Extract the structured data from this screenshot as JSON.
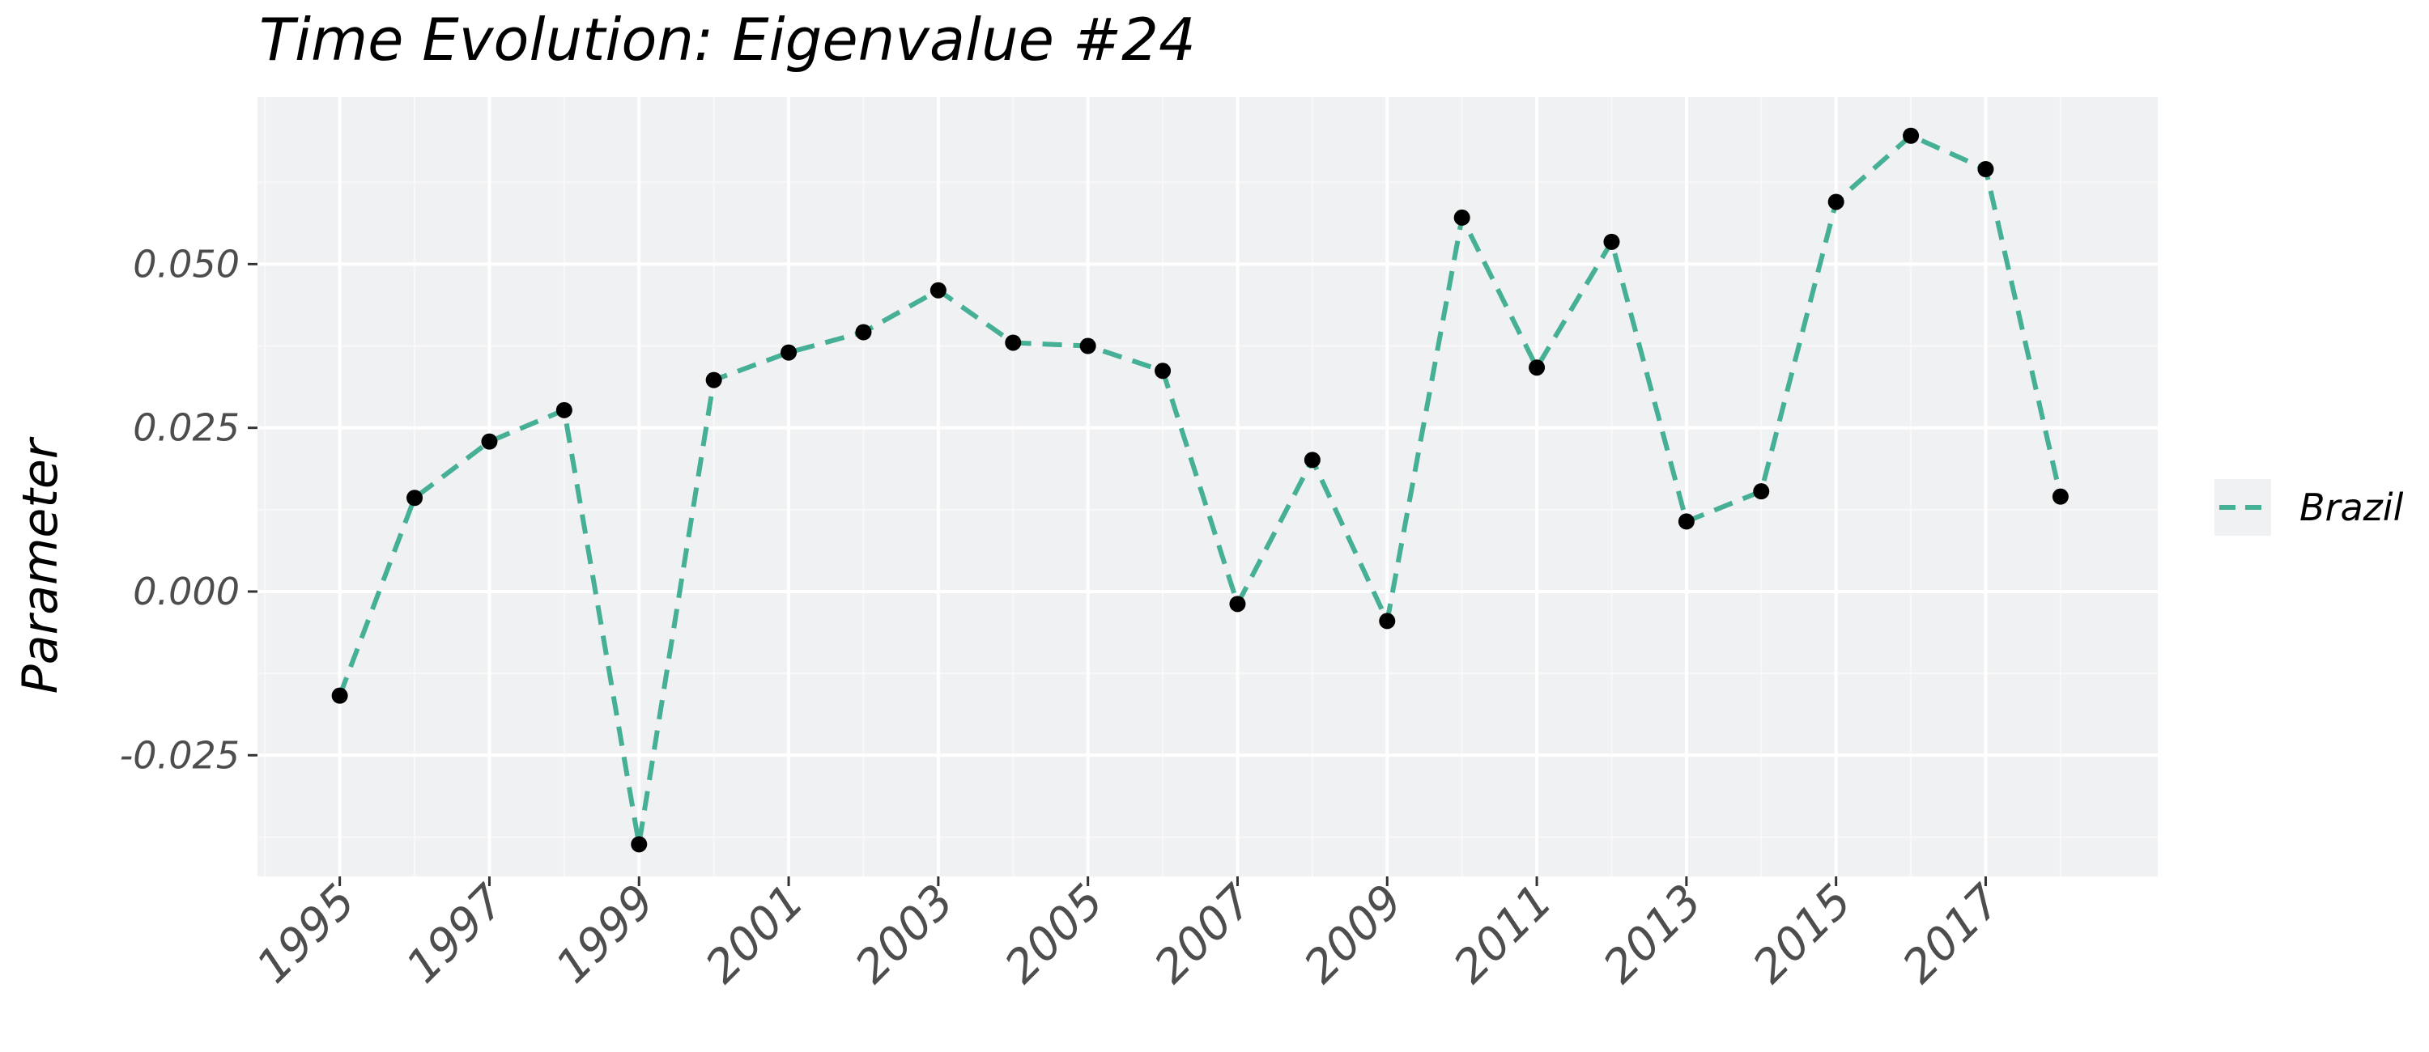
{
  "chart_data": {
    "type": "line",
    "title": "Time Evolution: Eigenvalue #24",
    "xlabel": "",
    "ylabel": "Parameter",
    "xlim": [
      1993.9,
      2019.3
    ],
    "ylim": [
      -0.0435,
      0.0755
    ],
    "x_ticks": [
      1995,
      1997,
      1999,
      2001,
      2003,
      2005,
      2007,
      2009,
      2011,
      2013,
      2015,
      2017
    ],
    "x_tick_labels": [
      "1995",
      "1997",
      "1999",
      "2001",
      "2003",
      "2005",
      "2007",
      "2009",
      "2011",
      "2013",
      "2015",
      "2017"
    ],
    "y_ticks": [
      -0.025,
      0.0,
      0.025,
      0.05
    ],
    "y_tick_labels": [
      "-0.025",
      "0.000",
      "0.025",
      "0.050"
    ],
    "grid": true,
    "legend_position": "right",
    "series": [
      {
        "name": "Brazil",
        "color": "#45b095",
        "line_style": "dashed",
        "marker_color": "#000000",
        "x": [
          1995,
          1996,
          1997,
          1998,
          1999,
          2000,
          2001,
          2002,
          2003,
          2004,
          2005,
          2006,
          2007,
          2008,
          2009,
          2010,
          2011,
          2012,
          2013,
          2014,
          2015,
          2016,
          2017,
          2018
        ],
        "values": [
          -0.0159,
          0.0143,
          0.0229,
          0.0277,
          -0.0386,
          0.0323,
          0.0365,
          0.0396,
          0.046,
          0.038,
          0.0375,
          0.0337,
          -0.0019,
          0.0201,
          -0.0045,
          0.0571,
          0.0342,
          0.0534,
          0.0107,
          0.0153,
          0.0595,
          0.0696,
          0.0645,
          0.0145
        ]
      }
    ]
  },
  "colors": {
    "panel_background": "#f0f1f2",
    "grid_major": "#ffffff",
    "grid_minor": "#f8f8f9",
    "legend_key_background": "#f0f1f2"
  }
}
